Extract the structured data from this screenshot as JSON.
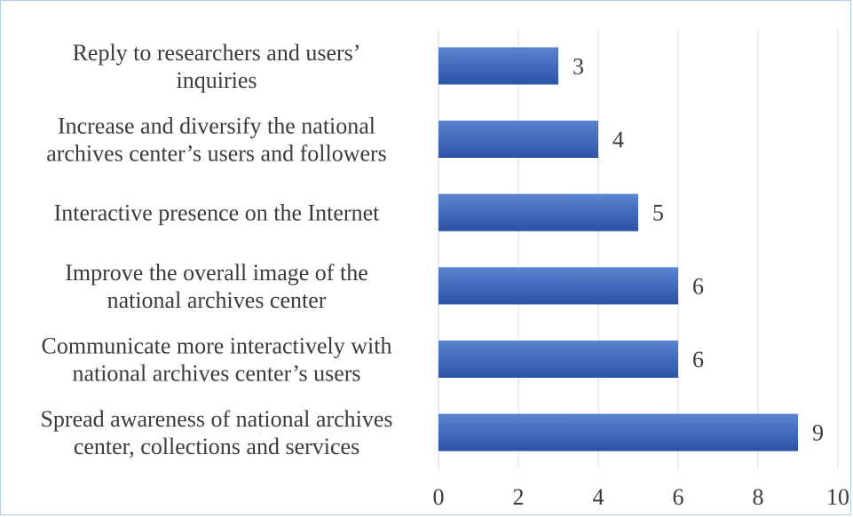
{
  "chart_data": {
    "type": "bar",
    "orientation": "horizontal",
    "categories": [
      [
        "Reply to researchers and users’",
        "inquiries"
      ],
      [
        "Increase and diversify the national",
        "archives center’s users and followers"
      ],
      [
        "Interactive presence on the Internet"
      ],
      [
        "Improve the overall image of the",
        "national archives center"
      ],
      [
        "Communicate more interactively with",
        "national archives center’s users"
      ],
      [
        "Spread awareness of national archives",
        "center, collections and services"
      ]
    ],
    "values": [
      3,
      4,
      5,
      6,
      6,
      9
    ],
    "xlim": [
      0,
      10
    ],
    "xticks": [
      0,
      2,
      4,
      6,
      8,
      10
    ],
    "grid": true,
    "bar_color": "#3a63b8",
    "bar_gradient_top": "#5b84d1",
    "bar_gradient_bottom": "#2c52a6"
  }
}
